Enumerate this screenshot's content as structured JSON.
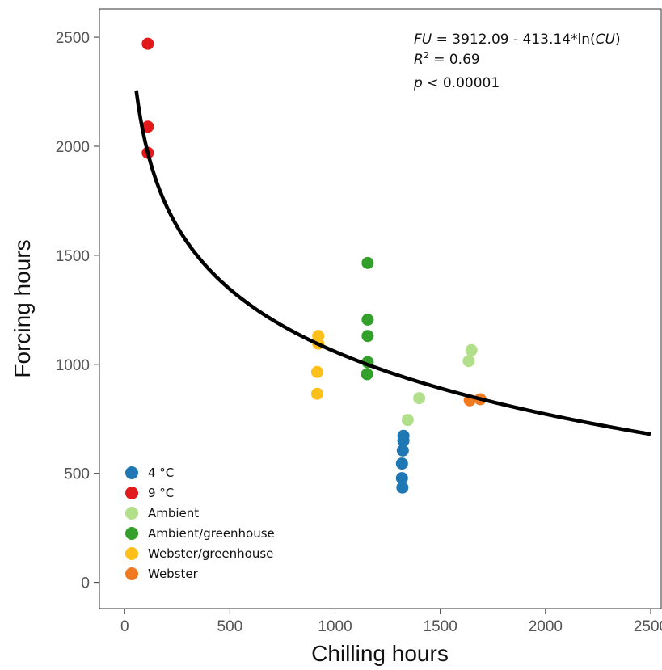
{
  "chart_data": {
    "type": "scatter",
    "xlabel": "Chilling hours",
    "ylabel": "Forcing hours",
    "xlim": [
      -120,
      2550
    ],
    "ylim": [
      -120,
      2630
    ],
    "xticks": [
      0,
      500,
      1000,
      1500,
      2000,
      2500
    ],
    "yticks": [
      0,
      500,
      1000,
      1500,
      2000,
      2500
    ],
    "grid": false,
    "legend_position": "bottom-left",
    "annotation": {
      "line1": {
        "v1": "FU",
        "t1": " = 3912.09  - 413.14*ln(",
        "v2": "CU",
        "t2": ")"
      },
      "line2": {
        "v1": "R",
        "sup": "2",
        "t1": " = 0.69"
      },
      "line3": {
        "v1": "p",
        "t1": " < 0.00001"
      }
    },
    "fit": {
      "label": "FU = 3912.09 - 413.14*ln(CU)",
      "intercept": 3912.09,
      "slope": -413.14,
      "x_range": [
        55,
        2500
      ],
      "color": "#000000"
    },
    "series": [
      {
        "name": "4 °C",
        "color": "#1f78b4",
        "points": [
          [
            1320,
            435
          ],
          [
            1318,
            478
          ],
          [
            1318,
            545
          ],
          [
            1322,
            605
          ],
          [
            1325,
            650
          ],
          [
            1325,
            672
          ]
        ]
      },
      {
        "name": "9 °C",
        "color": "#e31a1c",
        "points": [
          [
            110,
            2470
          ],
          [
            110,
            2090
          ],
          [
            110,
            1970
          ]
        ]
      },
      {
        "name": "Ambient",
        "color": "#b2df8a",
        "points": [
          [
            1345,
            745
          ],
          [
            1400,
            845
          ],
          [
            1635,
            1015
          ],
          [
            1648,
            1065
          ]
        ]
      },
      {
        "name": "Ambient/greenhouse",
        "color": "#33a02c",
        "points": [
          [
            1155,
            1465
          ],
          [
            1155,
            1205
          ],
          [
            1155,
            1130
          ],
          [
            1155,
            1010
          ],
          [
            1152,
            955
          ]
        ]
      },
      {
        "name": "Webster/greenhouse",
        "color": "#fdbf1a",
        "points": [
          [
            920,
            1130
          ],
          [
            920,
            1095
          ],
          [
            915,
            965
          ],
          [
            915,
            865
          ]
        ]
      },
      {
        "name": "Webster",
        "color": "#f07a22",
        "points": [
          [
            1640,
            835
          ],
          [
            1690,
            840
          ]
        ]
      }
    ]
  }
}
